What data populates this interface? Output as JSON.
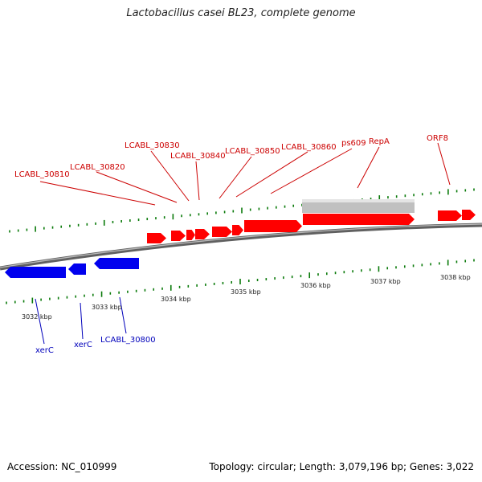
{
  "title": "Lactobacillus casei BL23, complete genome",
  "footer": {
    "accession": "Accession: NC_010999",
    "summary": "Topology: circular; Length: 3,079,196 bp; Genes: 3,022"
  },
  "colors": {
    "forward_gene": "#ff0000",
    "reverse_gene": "#0000ee",
    "forward_label": "#cc0000",
    "reverse_label": "#0000bb",
    "other_feature": "#c0c0c0",
    "tick": "#0a7a0a",
    "backbone": "#808080"
  },
  "scale_labels": [
    "3032 kbp",
    "3033 kbp",
    "3034 kbp",
    "3035 kbp",
    "3036 kbp",
    "3037 kbp",
    "3038 kbp"
  ],
  "forward_labels": [
    "LCABL_30810",
    "LCABL_30820",
    "LCABL_30830",
    "LCABL_30840",
    "LCABL_30850",
    "LCABL_30860",
    "ps609",
    "RepA",
    "ORF8"
  ],
  "reverse_labels": [
    "xerC",
    "xerC",
    "LCABL_30800"
  ]
}
